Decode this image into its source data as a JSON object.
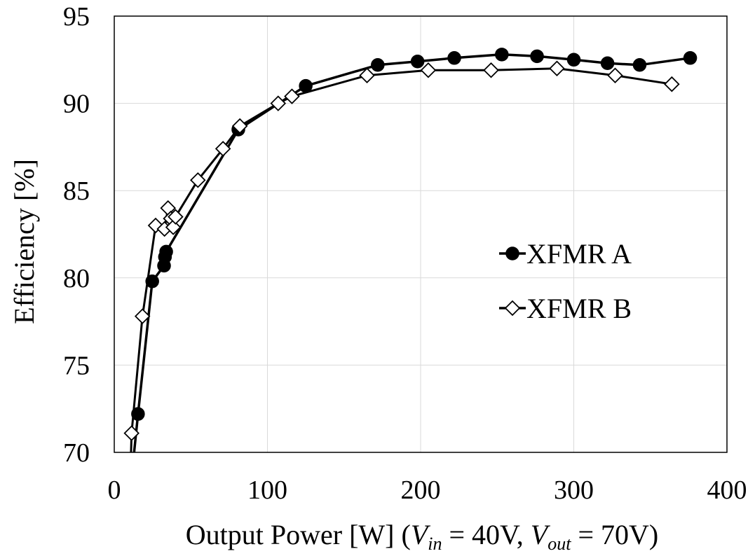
{
  "chart_data": {
    "type": "line",
    "title": "",
    "xlabel": {
      "main": "Output Power [W] (",
      "vin_sym": "V",
      "vin_sub": "in",
      "vin_val": " = 40V, ",
      "vout_sym": "V",
      "vout_sub": "out",
      "vout_val": " = 70V)"
    },
    "ylabel": "Efficiency [%]",
    "xlim": [
      0,
      400
    ],
    "ylim": [
      70,
      95
    ],
    "xticks": [
      0,
      100,
      200,
      300,
      400
    ],
    "yticks": [
      70,
      75,
      80,
      85,
      90,
      95
    ],
    "grid": true,
    "legend_position": "right-middle",
    "series": [
      {
        "name": "XFMR A",
        "marker": "filled-circle",
        "color": "#000000",
        "x": [
          15.5,
          24.8,
          32.5,
          33.1,
          33.9,
          81.0,
          125.0,
          172.0,
          198.0,
          222.0,
          253.0,
          276.0,
          300.0,
          322.0,
          343.0,
          376.0
        ],
        "y": [
          72.2,
          79.8,
          80.7,
          81.2,
          81.5,
          88.5,
          91.0,
          92.2,
          92.4,
          92.6,
          92.8,
          92.7,
          92.5,
          92.3,
          92.2,
          92.6
        ]
      },
      {
        "name": "XFMR B",
        "marker": "open-diamond",
        "color": "#000000",
        "x": [
          11.3,
          18.4,
          27.0,
          32.8,
          35.1,
          36.9,
          38.5,
          40.0,
          54.6,
          71.0,
          82.0,
          107.0,
          116.0,
          165.0,
          205.0,
          246.0,
          289.0,
          327.0,
          364.0
        ],
        "y": [
          71.1,
          77.8,
          83.0,
          82.8,
          84.0,
          83.4,
          82.9,
          83.5,
          85.6,
          87.4,
          88.7,
          90.0,
          90.4,
          91.6,
          91.9,
          91.9,
          92.0,
          91.6,
          91.1
        ]
      }
    ]
  }
}
